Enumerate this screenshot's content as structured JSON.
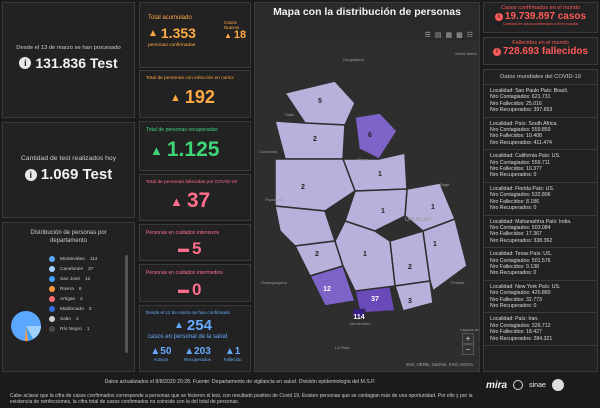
{
  "left_top": {
    "label": "Desde el 13 de marzo se han procesado",
    "value": "131.836 Test"
  },
  "left_mid": {
    "label": "Cantidad de test realizados hoy",
    "value": "1.069 Test"
  },
  "distribution": {
    "title": "Distribución de personas por departamento",
    "items": [
      {
        "name": "Montevideo",
        "count": "114",
        "color": "#5aa7ff"
      },
      {
        "name": "Canelones",
        "count": "37",
        "color": "#9fd0ff"
      },
      {
        "name": "San José",
        "count": "12",
        "color": "#3fa0ff"
      },
      {
        "name": "Rivera",
        "count": "6",
        "color": "#ff9a3c"
      },
      {
        "name": "Artigas",
        "count": "2",
        "color": "#ff6e6e"
      },
      {
        "name": "Maldonado",
        "count": "3",
        "color": "#2f6fd8"
      },
      {
        "name": "Salto",
        "count": "2",
        "color": "#d0d0d0"
      },
      {
        "name": "Río Negro",
        "count": "1",
        "color": "#4a4a4a"
      }
    ]
  },
  "total": {
    "label": "Total acumulado",
    "value": "1.353",
    "sub": "personas confirmadas",
    "new_label": "Casos Nuevos",
    "new_value": "18"
  },
  "active": {
    "label": "Total de personas con infección en curso:",
    "value": "192"
  },
  "recovered": {
    "label": "Total de personas recuperadas:",
    "value": "1.125"
  },
  "deceased": {
    "label": "Total de personas fallecidas por COVID-19",
    "value": "37"
  },
  "icu": {
    "label": "Personas en cuidados intensivos",
    "value": "5"
  },
  "intermediate": {
    "label": "Personas en cuidados intermedios",
    "value": "0"
  },
  "health": {
    "label": "Desde el 12 de marzo se han confirmado",
    "value": "254",
    "sub": "casos en personal de la salud",
    "stats": [
      {
        "value": "50",
        "label": "Activos"
      },
      {
        "value": "203",
        "label": "Recuperados"
      },
      {
        "value": "1",
        "label": "Fallecido"
      }
    ]
  },
  "map": {
    "title": "Mapa con la distribución de personas",
    "attribution": "Esri, HERE, Garmin, FAO, NOAA",
    "place_labels": [
      "Uruguaiana",
      "Santa Maria",
      "Concordia",
      "Salto",
      "Rivera",
      "Bagé",
      "URUGUAY",
      "Pelotas",
      "Laguna dos Patos",
      "Montevideo",
      "La Plata",
      "Gualeguaychú",
      "Paysandú"
    ],
    "dept_counts": [
      "5",
      "2",
      "6",
      "1",
      "2",
      "1",
      "1",
      "1",
      "2",
      "12",
      "37",
      "3",
      "114",
      "2",
      "1"
    ]
  },
  "world": {
    "cases_label": "Casos confirmados en el mundo",
    "cases_value": "19.739.897 casos",
    "cases_sub": "Cantidad de casos confirmados a nivel mundial",
    "deaths_label": "Fallecidos en el mundo",
    "deaths_value": "728.693 fallecidos",
    "list_title": "Datos mundiales del COVID-19",
    "countries": [
      {
        "loc": "Localidad: Sao Paulo País: Brazil.",
        "cont": "Nro Contagiados: 621.731",
        "fall": "Nro Fallecidos: 25.016",
        "rec": "Nro Recuperados: 397.653"
      },
      {
        "loc": "Localidad: País: South Africa.",
        "cont": "Nro Contagiados: 559.859",
        "fall": "Nro Fallecidos: 10.408",
        "rec": "Nro Recuperados: 411.474"
      },
      {
        "loc": "Localidad: California País: US.",
        "cont": "Nro Contagiados: 559.711",
        "fall": "Nro Fallecidos: 10.377",
        "rec": "Nro Recuperados: 0"
      },
      {
        "loc": "Localidad: Florida País: US.",
        "cont": "Nro Contagiados: 532.806",
        "fall": "Nro Fallecidos: 8.186",
        "rec": "Nro Recuperados: 0"
      },
      {
        "loc": "Localidad: Maharashtra País: India.",
        "cont": "Nro Contagiados: 503.084",
        "fall": "Nro Fallecidos: 17.367",
        "rec": "Nro Recuperados: 338.362"
      },
      {
        "loc": "Localidad: Texas País: US.",
        "cont": "Nro Contagiados: 501.576",
        "fall": "Nro Fallecidos: 9.138",
        "rec": "Nro Recuperados: 0"
      },
      {
        "loc": "Localidad: New York País: US.",
        "cont": "Nro Contagiados: 420.860",
        "fall": "Nro Fallecidos: 32.773",
        "rec": "Nro Recuperados: 0"
      },
      {
        "loc": "Localidad: País: Iran.",
        "cont": "Nro Contagiados: 326.712",
        "fall": "Nro Fallecidos: 18.427",
        "rec": "Nro Recuperados: 284.321"
      }
    ]
  },
  "footer": {
    "line1": "Datos actualizados el 8/8/2020 20:28. Fuente: Departamento de vigilancia en salud. División epidemiología del M.S.P.",
    "line2": "Cabe aclarar que la cifra de casos confirmados corresponde a personas que se hicieron el test, con resultado positivo de Covid 19. Existen personas que se contagian más de una oportunidad. Por ello y por la existencia de reinfecciones, la cifra total de casos confirmados no coincide con la del total de personas.",
    "logos": [
      "mira",
      "sinae"
    ]
  }
}
